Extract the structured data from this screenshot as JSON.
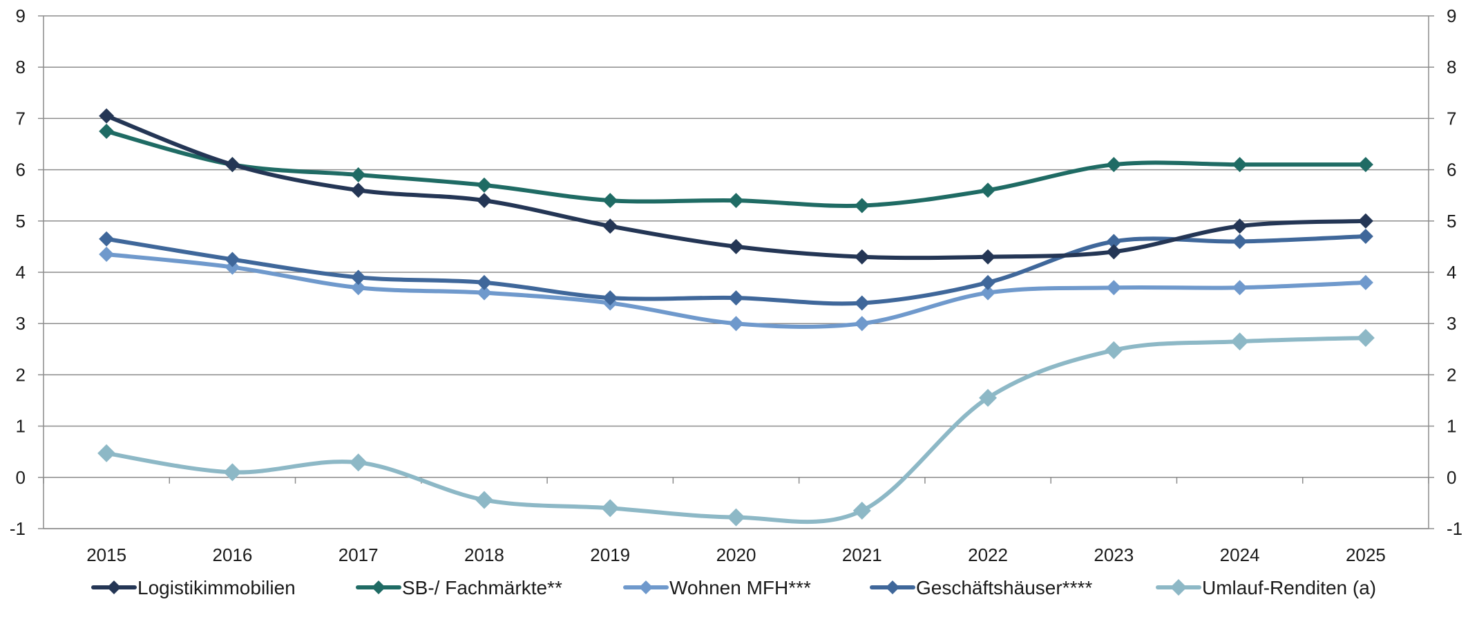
{
  "chart_data": {
    "type": "line",
    "title": "",
    "xlabel": "",
    "ylabel": "",
    "categories": [
      "2015",
      "2016",
      "2017",
      "2018",
      "2019",
      "2020",
      "2021",
      "2022",
      "2023",
      "2024",
      "2025"
    ],
    "ylim": [
      -1,
      9
    ],
    "yticks": [
      -1,
      0,
      1,
      2,
      3,
      4,
      5,
      6,
      7,
      8,
      9
    ],
    "ytick_labels": [
      "-1",
      "0",
      "1",
      "2",
      "3",
      "4",
      "5",
      "6",
      "7",
      "8",
      "9"
    ],
    "secondary_y_axis": true,
    "grid": "horizontal",
    "legend_position": "bottom",
    "marker": "diamond",
    "smooth": true,
    "series": [
      {
        "name": "Logistikimmobilien",
        "color": "#243655",
        "values": [
          7.05,
          6.1,
          5.6,
          5.4,
          4.9,
          4.5,
          4.3,
          4.3,
          4.4,
          4.9,
          5.0
        ]
      },
      {
        "name": "SB-/ Fachmärkte**",
        "color": "#1f6b64",
        "values": [
          6.75,
          6.1,
          5.9,
          5.7,
          5.4,
          5.4,
          5.3,
          5.6,
          6.1,
          6.1,
          6.1
        ]
      },
      {
        "name": "Wohnen MFH***",
        "color": "#6f99cc",
        "values": [
          4.35,
          4.1,
          3.7,
          3.6,
          3.4,
          3.0,
          3.0,
          3.6,
          3.7,
          3.7,
          3.8
        ]
      },
      {
        "name": "Geschäftshäuser****",
        "color": "#3f679a",
        "values": [
          4.65,
          4.25,
          3.9,
          3.8,
          3.5,
          3.5,
          3.4,
          3.8,
          4.6,
          4.6,
          4.7
        ]
      },
      {
        "name": "Umlauf-Renditen (a)",
        "color": "#8db8c6",
        "values": [
          0.47,
          0.1,
          0.29,
          -0.44,
          -0.6,
          -0.78,
          -0.65,
          1.55,
          2.48,
          2.65,
          2.72
        ]
      }
    ]
  }
}
